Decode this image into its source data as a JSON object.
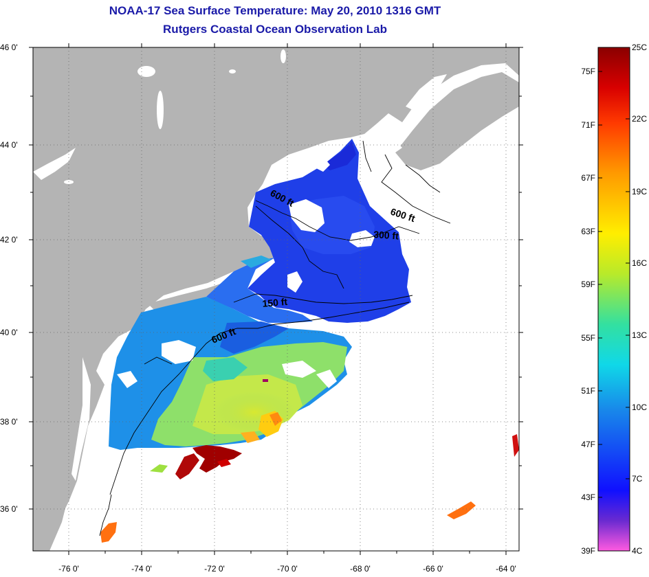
{
  "title": {
    "line1": "NOAA-17 Sea Surface Temperature:  May 20, 2010 1316 GMT",
    "line2": "Rutgers Coastal Ocean Observation Lab"
  },
  "axes": {
    "lat_labels": [
      "46 0'",
      "44 0'",
      "42 0'",
      "40 0'",
      "38 0'",
      "36 0'"
    ],
    "lon_labels": [
      "-76 0'",
      "-74 0'",
      "-72 0'",
      "-70 0'",
      "-68 0'",
      "-66 0'",
      "-64 0'"
    ]
  },
  "contours": [
    {
      "label": "600 ft"
    },
    {
      "label": "600 ft"
    },
    {
      "label": "300 ft"
    },
    {
      "label": "150 ft"
    },
    {
      "label": "600 ft"
    }
  ],
  "colorbar": {
    "fahrenheit": [
      "75F",
      "71F",
      "67F",
      "63F",
      "59F",
      "55F",
      "51F",
      "47F",
      "43F",
      "39F"
    ],
    "celsius": [
      "25C",
      "22C",
      "19C",
      "16C",
      "13C",
      "10C",
      "7C",
      "4C"
    ]
  },
  "colors": {
    "land": "#b4b4b4",
    "cloud": "#ffffff",
    "cold": "#1f2fe0",
    "mid": "#19a8e8",
    "warm": "#b8e23a",
    "hot": "#a00000",
    "title": "#1a1aa8"
  }
}
